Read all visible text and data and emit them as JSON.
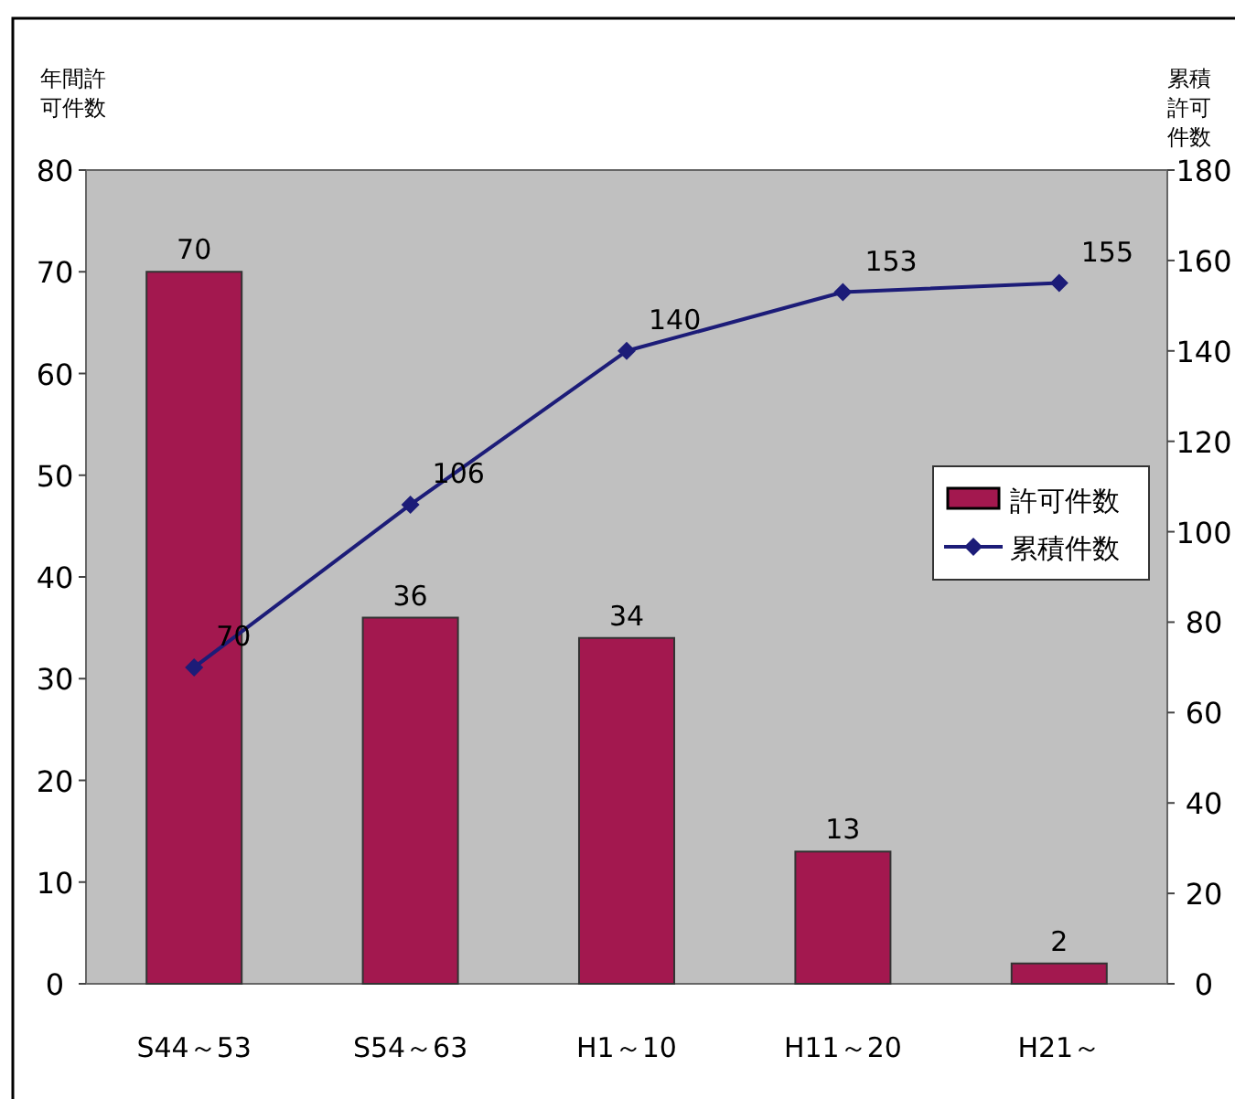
{
  "chart_data": {
    "type": "bar",
    "ylabel": "年間許可件数",
    "y2label": "累積許可件数",
    "categories": [
      "S44～53",
      "S54～63",
      "H1～10",
      "H11～20",
      "H21～"
    ],
    "series": [
      {
        "name": "許可件数",
        "color": "#a3184f",
        "values": [
          70,
          36,
          34,
          13,
          2
        ]
      },
      {
        "name": "累積件数",
        "type": "line",
        "axis": "y2",
        "color": "#1c1c78",
        "marker": "diamond",
        "values": [
          70,
          106,
          140,
          153,
          155
        ]
      }
    ],
    "ylim": [
      0,
      80
    ],
    "yticks": [
      0,
      10,
      20,
      30,
      40,
      50,
      60,
      70,
      80
    ],
    "y2lim": [
      0,
      180
    ],
    "y2ticks": [
      0,
      20,
      40,
      60,
      80,
      100,
      120,
      140,
      160,
      180
    ],
    "data_labels": true,
    "legend": "right",
    "grid": false
  }
}
